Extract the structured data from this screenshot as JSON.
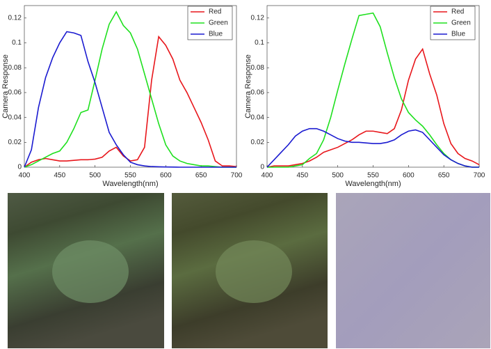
{
  "chart_data": [
    {
      "type": "line",
      "xlabel": "Wavelength(nm)",
      "ylabel": "Camera Response",
      "x": [
        400,
        410,
        420,
        430,
        440,
        450,
        460,
        470,
        480,
        490,
        500,
        510,
        520,
        530,
        540,
        550,
        560,
        570,
        580,
        590,
        600,
        610,
        620,
        630,
        640,
        650,
        660,
        670,
        680,
        690,
        700
      ],
      "xlim": [
        400,
        700
      ],
      "xticks": [
        400,
        450,
        500,
        550,
        600,
        650,
        700
      ],
      "ylim": [
        0,
        0.13
      ],
      "yticks": [
        0,
        0.02,
        0.04,
        0.06,
        0.08,
        0.1,
        0.12
      ],
      "legend": "northeast",
      "grid": false,
      "series": [
        {
          "name": "Red",
          "color": "#e8161b",
          "values": [
            0,
            0.004,
            0.006,
            0.007,
            0.006,
            0.005,
            0.005,
            0.0055,
            0.006,
            0.006,
            0.0065,
            0.008,
            0.013,
            0.016,
            0.009,
            0.005,
            0.006,
            0.016,
            0.07,
            0.105,
            0.098,
            0.087,
            0.07,
            0.06,
            0.048,
            0.036,
            0.022,
            0.005,
            0.001,
            0.001,
            0.0005
          ]
        },
        {
          "name": "Green",
          "color": "#1ee01e",
          "values": [
            0,
            0.002,
            0.005,
            0.008,
            0.011,
            0.013,
            0.02,
            0.031,
            0.044,
            0.046,
            0.07,
            0.095,
            0.115,
            0.125,
            0.114,
            0.108,
            0.095,
            0.075,
            0.055,
            0.035,
            0.018,
            0.009,
            0.005,
            0.003,
            0.002,
            0.001,
            0.001,
            0.0005,
            0,
            0,
            0
          ]
        },
        {
          "name": "Blue",
          "color": "#1a1ad0",
          "values": [
            0,
            0.014,
            0.048,
            0.072,
            0.088,
            0.1,
            0.109,
            0.108,
            0.106,
            0.085,
            0.068,
            0.048,
            0.028,
            0.018,
            0.01,
            0.004,
            0.002,
            0.001,
            0.0005,
            0.0003,
            0.0002,
            0.0001,
            0,
            0,
            0,
            0,
            0,
            0,
            0,
            0,
            0
          ]
        }
      ]
    },
    {
      "type": "line",
      "xlabel": "Wavelength(nm)",
      "ylabel": "Camera Response",
      "x": [
        400,
        410,
        420,
        430,
        440,
        450,
        460,
        470,
        480,
        490,
        500,
        510,
        520,
        530,
        540,
        550,
        560,
        570,
        580,
        590,
        600,
        610,
        620,
        630,
        640,
        650,
        660,
        670,
        680,
        690,
        700
      ],
      "xlim": [
        400,
        700
      ],
      "xticks": [
        400,
        450,
        500,
        550,
        600,
        650,
        700
      ],
      "ylim": [
        0,
        0.13
      ],
      "yticks": [
        0,
        0.02,
        0.04,
        0.06,
        0.08,
        0.1,
        0.12
      ],
      "legend": "northeast",
      "grid": false,
      "series": [
        {
          "name": "Red",
          "color": "#e8161b",
          "values": [
            0,
            0.001,
            0.001,
            0.001,
            0.002,
            0.003,
            0.005,
            0.008,
            0.012,
            0.014,
            0.016,
            0.019,
            0.022,
            0.026,
            0.029,
            0.029,
            0.028,
            0.027,
            0.031,
            0.046,
            0.07,
            0.087,
            0.095,
            0.075,
            0.058,
            0.035,
            0.019,
            0.011,
            0.007,
            0.005,
            0.002
          ]
        },
        {
          "name": "Green",
          "color": "#1ee01e",
          "values": [
            0,
            0,
            0,
            0,
            0.001,
            0.002,
            0.007,
            0.011,
            0.022,
            0.04,
            0.062,
            0.083,
            0.103,
            0.122,
            0.123,
            0.124,
            0.113,
            0.092,
            0.072,
            0.055,
            0.044,
            0.038,
            0.033,
            0.026,
            0.018,
            0.011,
            0.006,
            0.003,
            0.001,
            0,
            0
          ]
        },
        {
          "name": "Blue",
          "color": "#1a1ad0",
          "values": [
            0,
            0.006,
            0.012,
            0.018,
            0.025,
            0.029,
            0.031,
            0.031,
            0.029,
            0.026,
            0.023,
            0.021,
            0.02,
            0.02,
            0.0195,
            0.019,
            0.019,
            0.02,
            0.022,
            0.026,
            0.029,
            0.03,
            0.028,
            0.022,
            0.016,
            0.01,
            0.006,
            0.003,
            0.001,
            0,
            0
          ]
        }
      ]
    }
  ]
}
